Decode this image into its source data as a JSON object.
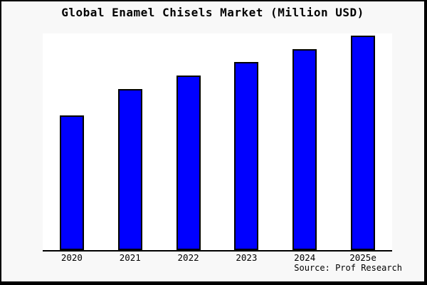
{
  "figure": {
    "background": "#f8f8f8",
    "plot_background": "#ffffff",
    "frame_color": "#000000",
    "source": "Source: Prof Research"
  },
  "chart": {
    "bar_color": "#0000ff",
    "bar_border_color": "#000000",
    "axis_color": "#000000"
  },
  "chart_data": {
    "type": "bar",
    "title": "Global Enamel Chisels Market (Million USD)",
    "categories": [
      "2020",
      "2021",
      "2022",
      "2023",
      "2024",
      "2025e"
    ],
    "values": [
      62.8,
      75.1,
      81.4,
      87.7,
      93.7,
      100.0
    ],
    "value_note": "no y-axis or data labels shown in figure; values are relative, indexed to 2025e = 100",
    "xlabel": "",
    "ylabel": "",
    "ylim": [
      0,
      101
    ],
    "grid": false,
    "legend": false,
    "annotations": [
      "Source: Prof Research"
    ]
  }
}
